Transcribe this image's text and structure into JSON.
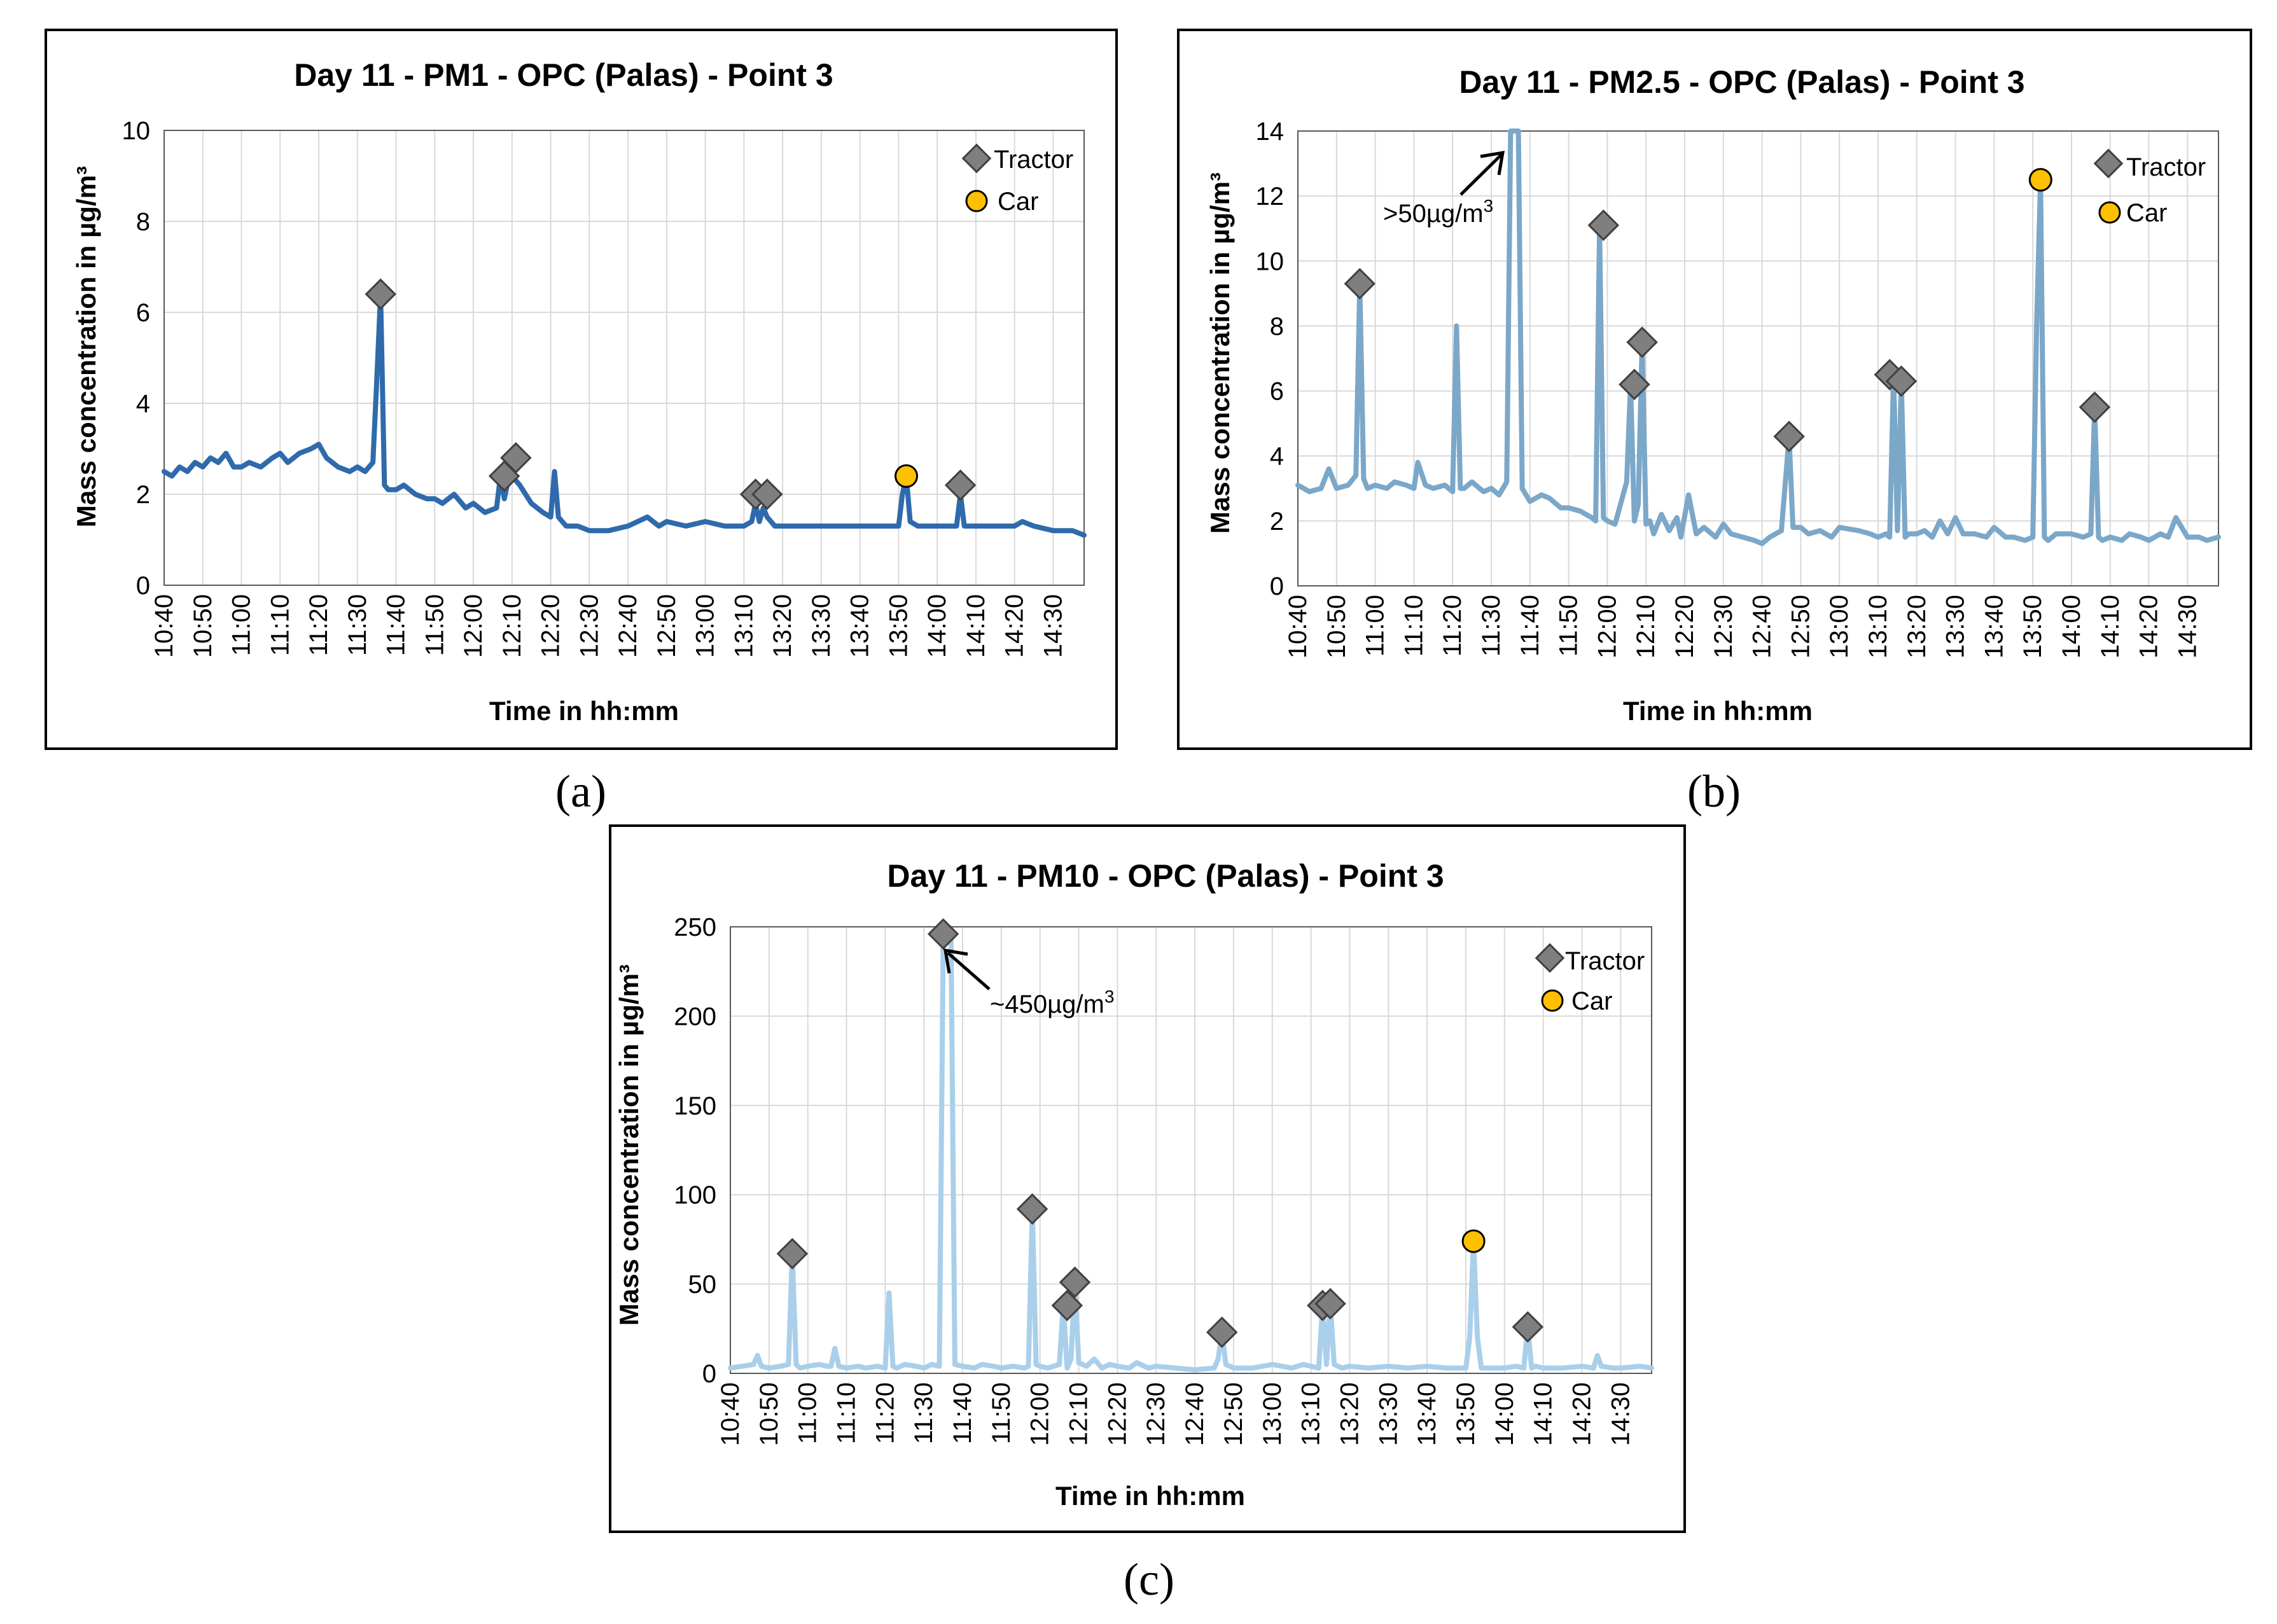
{
  "figure": {
    "captions": [
      "(a)",
      "(b)",
      "(c)"
    ]
  },
  "chart_data": [
    {
      "type": "line",
      "title": "Day 11 - PM1 - OPC (Palas) - Point 3",
      "xlabel": "Time in hh:mm",
      "ylabel": "Mass concentration in µg/m³",
      "ylim": [
        0,
        10
      ],
      "yticks": [
        "0",
        "2",
        "4",
        "6",
        "8",
        "10"
      ],
      "xlim": [
        "10:40",
        "14:38"
      ],
      "xticks": [
        "10:40",
        "10:50",
        "11:00",
        "11:10",
        "11:20",
        "11:30",
        "11:40",
        "11:50",
        "12:00",
        "12:10",
        "12:20",
        "12:30",
        "12:40",
        "12:50",
        "13:00",
        "13:10",
        "13:20",
        "13:30",
        "13:40",
        "13:50",
        "14:00",
        "14:10",
        "14:20",
        "14:30"
      ],
      "grid": true,
      "legend_position": "top-right",
      "line_color": "#2e6aac",
      "series": [
        {
          "x": [
            "10:40",
            "10:42",
            "10:44",
            "10:46",
            "10:48",
            "10:50",
            "10:52",
            "10:54",
            "10:56",
            "10:58",
            "11:00",
            "11:02",
            "11:05",
            "11:08",
            "11:10",
            "11:12",
            "11:15",
            "11:18",
            "11:20",
            "11:22",
            "11:25",
            "11:28",
            "11:30",
            "11:32",
            "11:34",
            "11:35",
            "11:36",
            "11:37",
            "11:38",
            "11:40",
            "11:42",
            "11:45",
            "11:48",
            "11:50",
            "11:52",
            "11:55",
            "11:58",
            "12:00",
            "12:03",
            "12:06",
            "12:07",
            "12:08",
            "12:09",
            "12:10",
            "12:12",
            "12:15",
            "12:18",
            "12:20",
            "12:21",
            "12:22",
            "12:24",
            "12:27",
            "12:30",
            "12:35",
            "12:40",
            "12:45",
            "12:48",
            "12:50",
            "12:55",
            "13:00",
            "13:05",
            "13:10",
            "13:12",
            "13:13",
            "13:14",
            "13:15",
            "13:16",
            "13:18",
            "13:20",
            "13:25",
            "13:30",
            "13:35",
            "13:40",
            "13:45",
            "13:50",
            "13:51",
            "13:52",
            "13:53",
            "13:55",
            "14:00",
            "14:03",
            "14:05",
            "14:06",
            "14:07",
            "14:10",
            "14:15",
            "14:20",
            "14:22",
            "14:25",
            "14:30",
            "14:35",
            "14:38"
          ],
          "y": [
            2.5,
            2.4,
            2.6,
            2.5,
            2.7,
            2.6,
            2.8,
            2.7,
            2.9,
            2.6,
            2.6,
            2.7,
            2.6,
            2.8,
            2.9,
            2.7,
            2.9,
            3.0,
            3.1,
            2.8,
            2.6,
            2.5,
            2.6,
            2.5,
            2.7,
            4.5,
            6.4,
            2.2,
            2.1,
            2.1,
            2.2,
            2.0,
            1.9,
            1.9,
            1.8,
            2.0,
            1.7,
            1.8,
            1.6,
            1.7,
            2.4,
            1.9,
            2.3,
            2.4,
            2.2,
            1.8,
            1.6,
            1.5,
            2.5,
            1.5,
            1.3,
            1.3,
            1.2,
            1.2,
            1.3,
            1.5,
            1.3,
            1.4,
            1.3,
            1.4,
            1.3,
            1.3,
            1.4,
            1.8,
            1.4,
            1.7,
            1.5,
            1.3,
            1.3,
            1.3,
            1.3,
            1.3,
            1.3,
            1.3,
            1.3,
            2.0,
            2.4,
            1.4,
            1.3,
            1.3,
            1.3,
            1.3,
            2.0,
            1.3,
            1.3,
            1.3,
            1.3,
            1.4,
            1.3,
            1.2,
            1.2,
            1.1
          ]
        },
        {
          "name": "Tractor",
          "marker": "diamond",
          "color": "#7f7f7f",
          "x": [
            "11:36",
            "12:08",
            "12:11",
            "13:13",
            "13:16",
            "14:06"
          ],
          "y": [
            6.4,
            2.4,
            2.8,
            2.0,
            2.0,
            2.2
          ]
        },
        {
          "name": "Car",
          "marker": "circle",
          "color": "#ffc000",
          "x": [
            "13:52"
          ],
          "y": [
            2.4
          ]
        }
      ]
    },
    {
      "type": "line",
      "title": "Day 11 - PM2.5 - OPC (Palas) - Point 3",
      "xlabel": "Time in hh:mm",
      "ylabel": "Mass concentration in µg/m³",
      "ylim": [
        0,
        14
      ],
      "yticks": [
        "0",
        "2",
        "4",
        "6",
        "8",
        "10",
        "12",
        "14"
      ],
      "xlim": [
        "10:40",
        "14:38"
      ],
      "xticks": [
        "10:40",
        "10:50",
        "11:00",
        "11:10",
        "11:20",
        "11:30",
        "11:40",
        "11:50",
        "12:00",
        "12:10",
        "12:20",
        "12:30",
        "12:40",
        "12:50",
        "13:00",
        "13:10",
        "13:20",
        "13:30",
        "13:40",
        "13:50",
        "14:00",
        "14:10",
        "14:20",
        "14:30"
      ],
      "grid": true,
      "legend_position": "top-right",
      "line_color": "#7ba7c9",
      "annotation": {
        "text": ">50µg/m",
        "superscript": "3",
        "x": "11:36",
        "y": 14
      },
      "series": [
        {
          "x": [
            "10:40",
            "10:43",
            "10:46",
            "10:48",
            "10:50",
            "10:53",
            "10:55",
            "10:56",
            "10:57",
            "10:58",
            "11:00",
            "11:03",
            "11:05",
            "11:08",
            "11:10",
            "11:11",
            "11:13",
            "11:15",
            "11:18",
            "11:20",
            "11:21",
            "11:22",
            "11:23",
            "11:25",
            "11:28",
            "11:30",
            "11:32",
            "11:34",
            "11:35",
            "11:36",
            "11:37",
            "11:38",
            "11:40",
            "11:43",
            "11:45",
            "11:48",
            "11:50",
            "11:53",
            "11:56",
            "11:57",
            "11:58",
            "11:59",
            "12:00",
            "12:02",
            "12:05",
            "12:06",
            "12:07",
            "12:08",
            "12:09",
            "12:10",
            "12:11",
            "12:12",
            "12:14",
            "12:16",
            "12:18",
            "12:19",
            "12:21",
            "12:23",
            "12:25",
            "12:28",
            "12:30",
            "12:32",
            "12:35",
            "12:38",
            "12:40",
            "12:42",
            "12:45",
            "12:47",
            "12:48",
            "12:50",
            "12:52",
            "12:55",
            "12:58",
            "13:00",
            "13:05",
            "13:08",
            "13:10",
            "13:12",
            "13:13",
            "13:14",
            "13:15",
            "13:16",
            "13:17",
            "13:18",
            "13:20",
            "13:22",
            "13:24",
            "13:26",
            "13:28",
            "13:30",
            "13:32",
            "13:35",
            "13:38",
            "13:40",
            "13:43",
            "13:45",
            "13:48",
            "13:50",
            "13:51",
            "13:52",
            "13:53",
            "13:54",
            "13:56",
            "14:00",
            "14:03",
            "14:05",
            "14:06",
            "14:07",
            "14:08",
            "14:10",
            "14:13",
            "14:15",
            "14:18",
            "14:20",
            "14:23",
            "14:25",
            "14:27",
            "14:30",
            "14:33",
            "14:35",
            "14:38"
          ],
          "y": [
            3.1,
            2.9,
            3.0,
            3.6,
            3.0,
            3.1,
            3.4,
            9.3,
            3.3,
            3.0,
            3.1,
            3.0,
            3.2,
            3.1,
            3.0,
            3.8,
            3.1,
            3.0,
            3.1,
            2.9,
            8.0,
            3.0,
            3.0,
            3.2,
            2.9,
            3.0,
            2.8,
            3.2,
            14,
            14,
            14,
            3.0,
            2.6,
            2.8,
            2.7,
            2.4,
            2.4,
            2.3,
            2.1,
            2.0,
            11.1,
            2.1,
            2.0,
            1.9,
            3.2,
            6.2,
            2.0,
            2.5,
            7.5,
            1.9,
            2.0,
            1.6,
            2.2,
            1.7,
            2.1,
            1.5,
            2.8,
            1.6,
            1.8,
            1.5,
            1.9,
            1.6,
            1.5,
            1.4,
            1.3,
            1.5,
            1.7,
            4.6,
            1.8,
            1.8,
            1.6,
            1.7,
            1.5,
            1.8,
            1.7,
            1.6,
            1.5,
            1.6,
            1.5,
            6.5,
            1.7,
            6.3,
            1.5,
            1.6,
            1.6,
            1.7,
            1.5,
            2.0,
            1.6,
            2.1,
            1.6,
            1.6,
            1.5,
            1.8,
            1.5,
            1.5,
            1.4,
            1.5,
            8.0,
            12.5,
            1.5,
            1.4,
            1.6,
            1.6,
            1.5,
            1.6,
            5.5,
            1.5,
            1.4,
            1.5,
            1.4,
            1.6,
            1.5,
            1.4,
            1.6,
            1.5,
            2.1,
            1.5,
            1.5,
            1.4,
            1.5
          ]
        },
        {
          "name": "Tractor",
          "marker": "diamond",
          "color": "#7f7f7f",
          "x": [
            "10:56",
            "11:59",
            "12:07",
            "12:09",
            "12:47",
            "13:13",
            "13:16",
            "14:06"
          ],
          "y": [
            9.3,
            11.1,
            6.2,
            7.5,
            4.6,
            6.5,
            6.3,
            5.5
          ]
        },
        {
          "name": "Car",
          "marker": "circle",
          "color": "#ffc000",
          "x": [
            "13:52"
          ],
          "y": [
            12.5
          ]
        }
      ]
    },
    {
      "type": "line",
      "title": "Day 11 - PM10 - OPC (Palas) - Point 3",
      "xlabel": "Time in hh:mm",
      "ylabel": "Mass concentration in µg/m³",
      "ylim": [
        0,
        250
      ],
      "yticks": [
        "0",
        "50",
        "100",
        "150",
        "200",
        "250"
      ],
      "xlim": [
        "10:40",
        "14:38"
      ],
      "xticks": [
        "10:40",
        "10:50",
        "11:00",
        "11:10",
        "11:20",
        "11:30",
        "11:40",
        "11:50",
        "12:00",
        "12:10",
        "12:20",
        "12:30",
        "12:40",
        "12:50",
        "13:00",
        "13:10",
        "13:20",
        "13:30",
        "13:40",
        "13:50",
        "14:00",
        "14:10",
        "14:20",
        "14:30"
      ],
      "grid": true,
      "legend_position": "top-right",
      "line_color": "#a9cfea",
      "annotation": {
        "text": "~450µg/m",
        "superscript": "3",
        "x": "11:35",
        "y": 245
      },
      "series": [
        {
          "x": [
            "10:40",
            "10:43",
            "10:46",
            "10:47",
            "10:48",
            "10:50",
            "10:53",
            "10:55",
            "10:56",
            "10:57",
            "10:58",
            "11:00",
            "11:03",
            "11:05",
            "11:06",
            "11:07",
            "11:08",
            "11:10",
            "11:13",
            "11:15",
            "11:18",
            "11:20",
            "11:21",
            "11:22",
            "11:23",
            "11:25",
            "11:28",
            "11:30",
            "11:32",
            "11:34",
            "11:35",
            "11:36",
            "11:37",
            "11:38",
            "11:40",
            "11:43",
            "11:45",
            "11:48",
            "11:50",
            "11:53",
            "11:56",
            "11:57",
            "11:58",
            "11:59",
            "12:00",
            "12:02",
            "12:05",
            "12:06",
            "12:07",
            "12:08",
            "12:09",
            "12:10",
            "12:11",
            "12:12",
            "12:14",
            "12:16",
            "12:18",
            "12:20",
            "12:23",
            "12:25",
            "12:28",
            "12:30",
            "12:35",
            "12:40",
            "12:45",
            "12:46",
            "12:47",
            "12:48",
            "12:50",
            "12:55",
            "13:00",
            "13:05",
            "13:08",
            "13:10",
            "13:12",
            "13:13",
            "13:14",
            "13:15",
            "13:16",
            "13:17",
            "13:18",
            "13:20",
            "13:25",
            "13:30",
            "13:35",
            "13:40",
            "13:45",
            "13:50",
            "13:51",
            "13:52",
            "13:53",
            "13:54",
            "13:56",
            "14:00",
            "14:03",
            "14:05",
            "14:06",
            "14:07",
            "14:08",
            "14:10",
            "14:15",
            "14:20",
            "14:23",
            "14:24",
            "14:25",
            "14:28",
            "14:30",
            "14:35",
            "14:38"
          ],
          "y": [
            3,
            4,
            5,
            10,
            4,
            3,
            4,
            5,
            67,
            5,
            3,
            4,
            5,
            4,
            4,
            14,
            4,
            3,
            4,
            3,
            4,
            3,
            45,
            4,
            3,
            5,
            4,
            3,
            5,
            4,
            245,
            245,
            245,
            5,
            4,
            3,
            5,
            4,
            3,
            4,
            3,
            4,
            92,
            5,
            4,
            3,
            5,
            38,
            3,
            8,
            51,
            6,
            5,
            4,
            8,
            3,
            5,
            4,
            3,
            6,
            3,
            4,
            3,
            2,
            3,
            8,
            23,
            5,
            3,
            3,
            5,
            3,
            5,
            4,
            3,
            38,
            5,
            39,
            5,
            4,
            3,
            4,
            3,
            4,
            3,
            4,
            3,
            3,
            20,
            74,
            20,
            3,
            3,
            3,
            4,
            3,
            26,
            3,
            4,
            3,
            3,
            4,
            3,
            10,
            4,
            3,
            3,
            4,
            3
          ]
        },
        {
          "name": "Tractor",
          "marker": "diamond",
          "color": "#7f7f7f",
          "x": [
            "10:56",
            "11:35",
            "11:58",
            "12:07",
            "12:09",
            "12:47",
            "13:13",
            "13:15",
            "14:06"
          ],
          "y": [
            67,
            246,
            92,
            38,
            51,
            23,
            38,
            39,
            26
          ]
        },
        {
          "name": "Car",
          "marker": "circle",
          "color": "#ffc000",
          "x": [
            "13:52"
          ],
          "y": [
            74
          ]
        }
      ]
    }
  ]
}
